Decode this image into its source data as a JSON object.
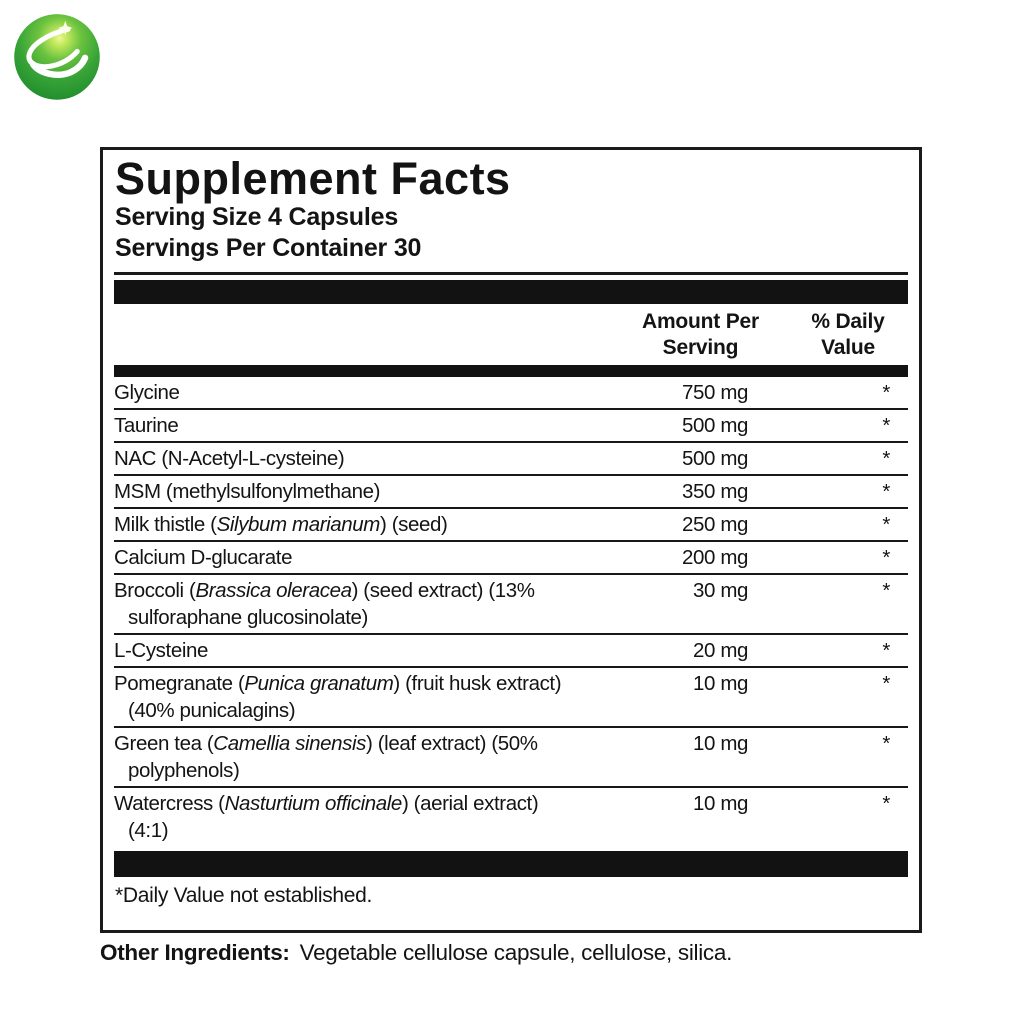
{
  "logo": {
    "name": "green-globe-logo",
    "colors": {
      "highlight": "#eef89b",
      "light_green": "#a8dd4a",
      "mid_green": "#3fae3c",
      "dark_green": "#1c8a2c",
      "swoosh": "#ffffff"
    }
  },
  "panel": {
    "title": "Supplement Facts",
    "serving_size": "Serving Size 4 Capsules",
    "servings_per_container": "Servings Per Container 30",
    "amount_header": "Amount Per\nServing",
    "dv_header": "% Daily\nValue",
    "footnote": "*Daily Value not established.",
    "border_color": "#1a1a1a",
    "bar_color": "#121212"
  },
  "rows": [
    {
      "parts": [
        {
          "t": "Glycine",
          "i": false
        }
      ],
      "amount": "750 mg",
      "dv": "*"
    },
    {
      "parts": [
        {
          "t": "Taurine",
          "i": false
        }
      ],
      "amount": "500 mg",
      "dv": "*"
    },
    {
      "parts": [
        {
          "t": "NAC (N-Acetyl-L-cysteine)",
          "i": false
        }
      ],
      "amount": "500 mg",
      "dv": "*"
    },
    {
      "parts": [
        {
          "t": "MSM (methylsulfonylmethane)",
          "i": false
        }
      ],
      "amount": "350 mg",
      "dv": "*"
    },
    {
      "parts": [
        {
          "t": "Milk thistle (",
          "i": false
        },
        {
          "t": "Silybum marianum",
          "i": true
        },
        {
          "t": ") (seed)",
          "i": false
        }
      ],
      "amount": "250 mg",
      "dv": "*"
    },
    {
      "parts": [
        {
          "t": "Calcium D-glucarate",
          "i": false
        }
      ],
      "amount": "200 mg",
      "dv": "*"
    },
    {
      "parts": [
        {
          "t": "Broccoli (",
          "i": false
        },
        {
          "t": "Brassica oleracea",
          "i": true
        },
        {
          "t": ") (seed extract) (13%",
          "i": false
        }
      ],
      "line2": "sulforaphane glucosinolate)",
      "amount": "30 mg",
      "dv": "*"
    },
    {
      "parts": [
        {
          "t": "L-Cysteine",
          "i": false
        }
      ],
      "amount": "20 mg",
      "dv": "*"
    },
    {
      "parts": [
        {
          "t": "Pomegranate (",
          "i": false
        },
        {
          "t": "Punica granatum",
          "i": true
        },
        {
          "t": ") (fruit husk extract)",
          "i": false
        }
      ],
      "line2": "(40% punicalagins)",
      "amount": "10 mg",
      "dv": "*"
    },
    {
      "parts": [
        {
          "t": "Green tea (",
          "i": false
        },
        {
          "t": "Camellia sinensis",
          "i": true
        },
        {
          "t": ") (leaf extract) (50%",
          "i": false
        }
      ],
      "line2": "polyphenols)",
      "amount": "10 mg",
      "dv": "*"
    },
    {
      "parts": [
        {
          "t": "Watercress (",
          "i": false
        },
        {
          "t": "Nasturtium officinale",
          "i": true
        },
        {
          "t": ") (aerial extract)",
          "i": false
        }
      ],
      "line2": "(4:1)",
      "amount": "10 mg",
      "dv": "*"
    }
  ],
  "other_ingredients": {
    "label": "Other Ingredients:",
    "text": "Vegetable cellulose capsule, cellulose, silica."
  }
}
